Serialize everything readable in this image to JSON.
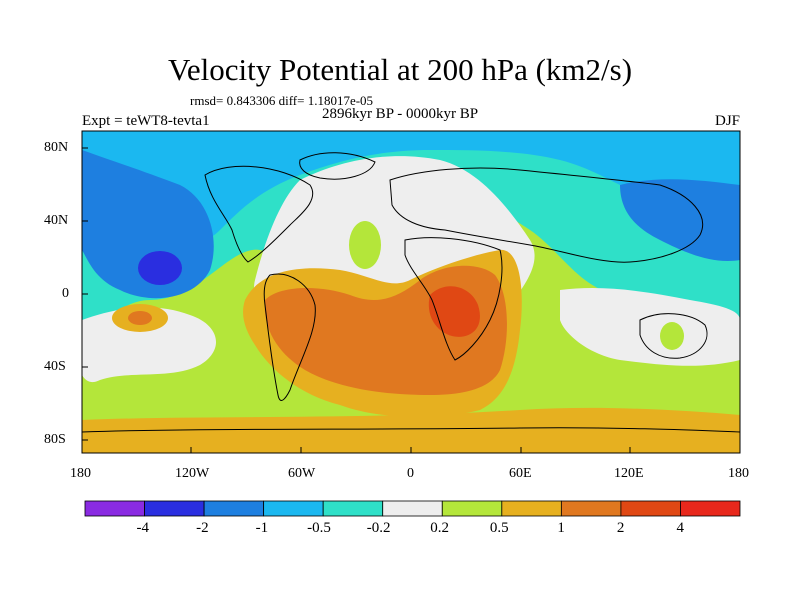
{
  "title": "Velocity Potential at 200 hPa (km2/s)",
  "stats_line": "rmsd= 0.843306 diff= 1.18017e-05",
  "period": "2896kyr BP - 0000kyr BP",
  "experiment": "Expt = teWT8-tevta1",
  "season": "DJF",
  "lat_labels": [
    "80N",
    "40N",
    "0",
    "40S",
    "80S"
  ],
  "lon_labels": [
    "180",
    "120W",
    "60W",
    "0",
    "60E",
    "120E",
    "180"
  ],
  "colorbar": {
    "labels": [
      "-4",
      "-2",
      "-1",
      "-0.5",
      "-0.2",
      "0.2",
      "0.5",
      "1",
      "2",
      "4"
    ],
    "colors": [
      "#8a2be2",
      "#2a2ee0",
      "#1e7fe0",
      "#1bb8f0",
      "#2fe0c8",
      "#eeeeee",
      "#b4e63a",
      "#e6b020",
      "#e07820",
      "#e04814",
      "#e8281c"
    ]
  }
}
